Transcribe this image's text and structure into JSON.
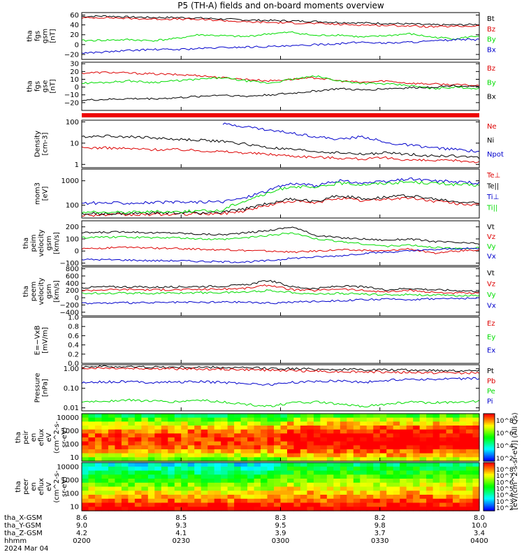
{
  "title": "P5 (TH-A) fields and on-board moments overview",
  "colors": {
    "black": "#000000",
    "red": "#dd0000",
    "green": "#00dd00",
    "blue": "#0000cc",
    "band": "#ee0000"
  },
  "chart_data": [
    {
      "type": "line",
      "ylabel": [
        "tha",
        "fgs",
        "gsm",
        "[nT]"
      ],
      "ylim": [
        -30,
        65
      ],
      "yticks": [
        "60",
        "40",
        "20",
        "0",
        "−20"
      ],
      "series": [
        {
          "name": "Bt",
          "color": "black",
          "y": [
            57,
            58,
            56,
            55,
            55,
            54,
            52,
            50,
            49,
            48,
            47,
            45,
            44,
            43,
            42,
            40,
            40,
            41
          ]
        },
        {
          "name": "Bz",
          "color": "red",
          "y": [
            54,
            55,
            53,
            52,
            52,
            51,
            49,
            46,
            45,
            44,
            43,
            41,
            40,
            39,
            38,
            36,
            37,
            38
          ]
        },
        {
          "name": "By",
          "color": "green",
          "y": [
            8,
            9,
            10,
            8,
            12,
            20,
            18,
            16,
            22,
            25,
            18,
            20,
            15,
            18,
            22,
            15,
            12,
            18
          ]
        },
        {
          "name": "Bx",
          "color": "blue",
          "y": [
            -17,
            -15,
            -12,
            -10,
            -10,
            -8,
            -6,
            -5,
            -4,
            -3,
            0,
            2,
            5,
            3,
            5,
            7,
            10,
            10
          ]
        }
      ]
    },
    {
      "type": "line",
      "ylabel": [
        "tha",
        "fgs",
        "gse",
        "[nT]"
      ],
      "ylim": [
        -30,
        32
      ],
      "yticks": [
        "30",
        "20",
        "10",
        "0",
        "−10",
        "−20"
      ],
      "series": [
        {
          "name": "Bz",
          "color": "red",
          "y": [
            18,
            19,
            18,
            17,
            16,
            15,
            12,
            10,
            8,
            10,
            12,
            8,
            6,
            8,
            5,
            4,
            3,
            2
          ]
        },
        {
          "name": "By",
          "color": "green",
          "y": [
            5,
            6,
            8,
            6,
            8,
            10,
            12,
            8,
            5,
            10,
            14,
            8,
            5,
            4,
            2,
            -2,
            0,
            -2
          ]
        },
        {
          "name": "Bx",
          "color": "black",
          "y": [
            -17,
            -16,
            -15,
            -15,
            -14,
            -12,
            -10,
            -12,
            -10,
            -8,
            -5,
            -2,
            -4,
            -2,
            -1,
            0,
            2,
            0
          ]
        }
      ]
    },
    {
      "type": "line",
      "log": true,
      "ylabel": [
        "Density",
        "[cm-3]"
      ],
      "ylim": [
        0.7,
        120
      ],
      "yticks": [
        "100",
        "10",
        "1"
      ],
      "series": [
        {
          "name": "Ne",
          "color": "red",
          "y": [
            6,
            6,
            5.5,
            5,
            5,
            4.5,
            4,
            3.5,
            3,
            2.5,
            2.2,
            2,
            1.8,
            2,
            1.6,
            1.5,
            1.5,
            1.3
          ]
        },
        {
          "name": "Ni",
          "color": "black",
          "y": [
            20,
            22,
            20,
            18,
            15,
            14,
            12,
            9,
            6,
            5,
            4,
            3.5,
            3,
            3.5,
            3,
            2.5,
            2.5,
            2
          ]
        },
        {
          "name": "Npot",
          "color": "blue",
          "y": [
            null,
            null,
            null,
            null,
            null,
            null,
            80,
            60,
            40,
            30,
            20,
            15,
            20,
            10,
            8,
            6,
            5,
            4
          ]
        }
      ]
    },
    {
      "type": "line",
      "log": true,
      "ylabel": [
        "mom3",
        "[eV]"
      ],
      "ylim": [
        30,
        3000
      ],
      "yticks": [
        "1000",
        "100"
      ],
      "series": [
        {
          "name": "Te⊥",
          "color": "red",
          "y": [
            40,
            40,
            40,
            42,
            42,
            45,
            45,
            60,
            100,
            150,
            120,
            200,
            150,
            180,
            200,
            150,
            120,
            100
          ]
        },
        {
          "name": "Te||",
          "color": "black",
          "y": [
            45,
            45,
            45,
            48,
            48,
            50,
            50,
            70,
            120,
            180,
            140,
            250,
            180,
            220,
            250,
            180,
            140,
            120
          ]
        },
        {
          "name": "Ti⊥",
          "color": "blue",
          "y": [
            120,
            125,
            125,
            128,
            130,
            135,
            140,
            200,
            400,
            800,
            600,
            1000,
            800,
            900,
            1200,
            1000,
            900,
            800
          ]
        },
        {
          "name": "Ti||",
          "color": "green",
          "y": [
            50,
            52,
            52,
            55,
            55,
            58,
            60,
            150,
            300,
            600,
            500,
            800,
            700,
            800,
            900,
            800,
            700,
            650
          ]
        }
      ]
    },
    {
      "type": "line",
      "ylabel": [
        "tha",
        "peim",
        "velocity",
        "gsm",
        "[km/s]"
      ],
      "ylim": [
        -120,
        250
      ],
      "yticks": [
        "200",
        "100",
        "0",
        "−100"
      ],
      "series": [
        {
          "name": "Vt",
          "color": "black",
          "y": [
            150,
            155,
            160,
            150,
            150,
            140,
            135,
            150,
            170,
            200,
            130,
            110,
            100,
            90,
            100,
            80,
            70,
            60
          ]
        },
        {
          "name": "Vz",
          "color": "red",
          "y": [
            20,
            25,
            30,
            25,
            20,
            15,
            10,
            5,
            0,
            -10,
            0,
            10,
            5,
            0,
            20,
            -20,
            0,
            10
          ]
        },
        {
          "name": "Vy",
          "color": "green",
          "y": [
            110,
            115,
            115,
            110,
            110,
            100,
            95,
            110,
            130,
            150,
            100,
            80,
            60,
            40,
            50,
            30,
            20,
            30
          ]
        },
        {
          "name": "Vx",
          "color": "blue",
          "y": [
            -70,
            -72,
            -75,
            -80,
            -80,
            -85,
            -90,
            -90,
            -80,
            -60,
            -50,
            -40,
            -20,
            -10,
            0,
            10,
            20,
            20
          ]
        }
      ]
    },
    {
      "type": "line",
      "ylabel": [
        "tha",
        "peem",
        "velocity",
        "gsm",
        "[km/s]"
      ],
      "ylim": [
        -500,
        850
      ],
      "yticks": [
        "800",
        "600",
        "400",
        "200",
        "0",
        "−200",
        "−400"
      ],
      "series": [
        {
          "name": "Vt",
          "color": "black",
          "y": [
            280,
            300,
            300,
            290,
            300,
            310,
            320,
            350,
            480,
            300,
            250,
            320,
            300,
            220,
            260,
            220,
            200,
            180
          ]
        },
        {
          "name": "Vz",
          "color": "red",
          "y": [
            200,
            220,
            230,
            220,
            220,
            230,
            240,
            260,
            350,
            220,
            200,
            250,
            200,
            160,
            200,
            150,
            130,
            120
          ]
        },
        {
          "name": "Vy",
          "color": "green",
          "y": [
            120,
            130,
            130,
            120,
            130,
            140,
            140,
            160,
            200,
            150,
            100,
            120,
            100,
            80,
            90,
            70,
            60,
            60
          ]
        },
        {
          "name": "Vx",
          "color": "blue",
          "y": [
            -150,
            -150,
            -140,
            -140,
            -130,
            -130,
            -120,
            -120,
            -150,
            -120,
            -100,
            -80,
            -60,
            -40,
            -50,
            -30,
            -20,
            -20
          ]
        }
      ]
    },
    {
      "type": "line",
      "ylabel": [
        "E=−VxB",
        "[mV/m]"
      ],
      "ylim": [
        0,
        1.0
      ],
      "yticks": [
        "1.0",
        "0.8",
        "0.6",
        "0.4",
        "0.2",
        "0.0"
      ],
      "series": [
        {
          "name": "Ez",
          "color": "red",
          "y": []
        },
        {
          "name": "Ey",
          "color": "green",
          "y": []
        },
        {
          "name": "Ex",
          "color": "blue",
          "y": []
        }
      ]
    },
    {
      "type": "line",
      "log": true,
      "ylabel": [
        "Pressure",
        "[nPa]"
      ],
      "ylim": [
        0.007,
        1.6
      ],
      "yticks": [
        "1.00",
        "0.10",
        "0.01"
      ],
      "series": [
        {
          "name": "Pt",
          "color": "black",
          "y": [
            1.3,
            1.3,
            1.25,
            1.22,
            1.2,
            1.18,
            1.15,
            1.1,
            1.05,
            1.0,
            0.95,
            0.92,
            0.9,
            0.88,
            0.85,
            0.83,
            0.82,
            0.8
          ]
        },
        {
          "name": "Pb",
          "color": "red",
          "y": [
            1.1,
            1.1,
            1.05,
            1.02,
            1.0,
            0.98,
            0.95,
            0.9,
            0.85,
            0.8,
            0.75,
            0.72,
            0.7,
            0.68,
            0.65,
            0.63,
            0.62,
            0.6
          ]
        },
        {
          "name": "Pe",
          "color": "green",
          "y": [
            0.02,
            0.022,
            0.025,
            0.022,
            0.02,
            0.025,
            0.02,
            0.015,
            0.012,
            0.018,
            0.02,
            0.015,
            0.012,
            0.015,
            0.02,
            0.018,
            0.02,
            0.022
          ]
        },
        {
          "name": "Pi",
          "color": "blue",
          "y": [
            0.2,
            0.21,
            0.22,
            0.2,
            0.21,
            0.22,
            0.2,
            0.18,
            0.15,
            0.2,
            0.22,
            0.25,
            0.2,
            0.25,
            0.3,
            0.28,
            0.3,
            0.32
          ]
        }
      ]
    },
    {
      "type": "heatmap",
      "ylabel": [
        "tha",
        "peir",
        "en",
        "eflux",
        "eV",
        "(cm^2-s-",
        "sr-eV)"
      ],
      "ylim_log": [
        5,
        20000
      ],
      "yticks": [
        "10000",
        "1000",
        "100",
        "10"
      ],
      "colorbar": {
        "labels": [
          "10^8",
          "10^6",
          "10^4",
          "10^2"
        ],
        "title": "[eV/(cm^2-s-sr-eV)] (All Qs)"
      }
    },
    {
      "type": "heatmap",
      "ylabel": [
        "tha",
        "peer",
        "en",
        "eflux",
        "eV",
        "(cm^2-s-",
        "sr-eV)"
      ],
      "ylim_log": [
        5,
        20000
      ],
      "yticks": [
        "10000",
        "1000",
        "100",
        "10"
      ],
      "colorbar": {
        "labels": [
          "10^8",
          "10^7",
          "10^6",
          "10^5",
          "10^4",
          "10^3",
          "10^2"
        ]
      }
    }
  ],
  "xaxis": {
    "rows": [
      {
        "label": "tha_X-GSM",
        "values": [
          "8.6",
          "8.5",
          "8.3",
          "8.2",
          "8.0"
        ]
      },
      {
        "label": "tha_Y-GSM",
        "values": [
          "9.0",
          "9.3",
          "9.5",
          "9.8",
          "10.0"
        ]
      },
      {
        "label": "tha_Z-GSM",
        "values": [
          "4.2",
          "4.1",
          "3.9",
          "3.7",
          "3.4"
        ]
      },
      {
        "label": "hhmm",
        "values": [
          "0200",
          "0230",
          "0300",
          "0330",
          "0400"
        ]
      }
    ],
    "date": "2024 Mar 04"
  }
}
